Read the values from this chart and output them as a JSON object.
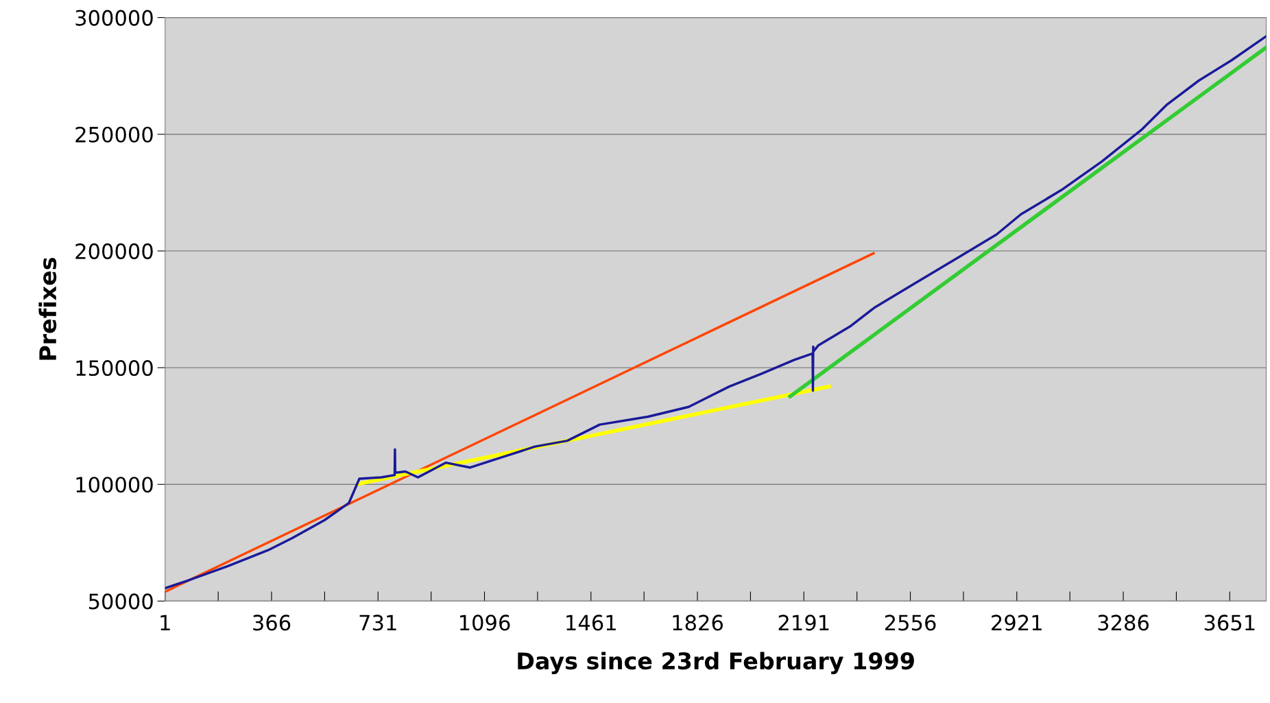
{
  "chart_data": {
    "type": "line",
    "xlabel": "Days since 23rd February 1999",
    "ylabel": "Prefixes",
    "xlim": [
      1,
      3776
    ],
    "ylim": [
      50000,
      300000
    ],
    "xticks": [
      1,
      {
        "value": 183,
        "label": null
      },
      366,
      {
        "value": 548,
        "label": null
      },
      731,
      {
        "value": 913,
        "label": null
      },
      1096,
      {
        "value": 1278,
        "label": null
      },
      1461,
      {
        "value": 1643,
        "label": null
      },
      1826,
      {
        "value": 2008,
        "label": null
      },
      2191,
      {
        "value": 2373,
        "label": null
      },
      2556,
      {
        "value": 2738,
        "label": null
      },
      2921,
      {
        "value": 3103,
        "label": null
      },
      3286,
      {
        "value": 3468,
        "label": null
      },
      3651
    ],
    "yticks": [
      50000,
      100000,
      150000,
      200000,
      250000,
      300000
    ],
    "grid": "y",
    "legend": false,
    "marker": "none",
    "line_style": "solid",
    "series": [
      {
        "color": "#1a1a99",
        "x": [
          1,
          76,
          215,
          354,
          437,
          548,
          631,
          667,
          742,
          788,
          789,
          790,
          825,
          868,
          964,
          1047,
          1158,
          1269,
          1380,
          1491,
          1657,
          1796,
          1935,
          2046,
          2157,
          2221,
          2222,
          2223,
          2224,
          2241,
          2352,
          2435,
          2574,
          2713,
          2852,
          2935,
          3074,
          3212,
          3351,
          3434,
          3545,
          3656,
          3776
        ],
        "values": [
          55500,
          58700,
          64900,
          71800,
          77000,
          84700,
          92000,
          102400,
          103000,
          104000,
          115000,
          105000,
          105500,
          103000,
          109300,
          107200,
          111700,
          116200,
          118700,
          125600,
          129000,
          133200,
          141900,
          147400,
          153300,
          156100,
          140200,
          159000,
          157000,
          159600,
          167900,
          175900,
          186300,
          196700,
          207100,
          215700,
          226100,
          238300,
          252200,
          262500,
          273000,
          281600,
          292000
        ]
      },
      {
        "type": "line",
        "color": "#ff4500",
        "x": [
          1,
          2430
        ],
        "values": [
          54000,
          199000
        ]
      },
      {
        "type": "line",
        "color": "#ffff00",
        "x": [
          667,
          2277
        ],
        "values": [
          100300,
          141900
        ]
      },
      {
        "type": "line",
        "color": "#33cc33",
        "x": [
          2144,
          3776
        ],
        "values": [
          137700,
          287200
        ]
      }
    ]
  }
}
